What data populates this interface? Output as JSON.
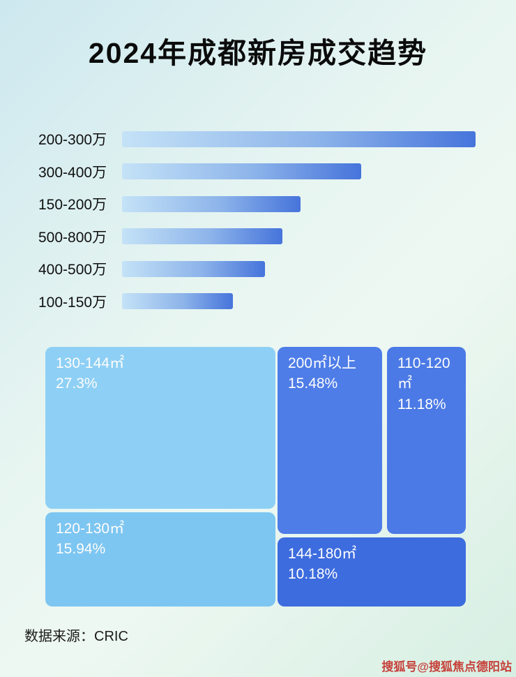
{
  "page": {
    "title": "2024年成都新房成交趋势",
    "source": "数据来源：CRIC",
    "watermark": "搜狐号@搜狐焦点德阳站"
  },
  "colors": {
    "bar_gradient_start": "#c4e2f7",
    "bar_gradient_end": "#4674db",
    "block_text": "#ffffff",
    "watermark_text": "#c6403a"
  },
  "bars": {
    "items": [
      {
        "label": "200-300万",
        "width": "99%"
      },
      {
        "label": "300-400万",
        "width": "67%"
      },
      {
        "label": "150-200万",
        "width": "50%"
      },
      {
        "label": "500-800万",
        "width": "45%"
      },
      {
        "label": "400-500万",
        "width": "40%"
      },
      {
        "label": "100-150万",
        "width": "31%"
      }
    ]
  },
  "treemap": {
    "blocks": [
      {
        "label": "130-144㎡",
        "value": "27.3%",
        "color": "#8ed0f5"
      },
      {
        "label": "200㎡以上",
        "value": "15.48%",
        "color": "#4e7de8"
      },
      {
        "label": "110-120㎡",
        "value": "11.18%",
        "color": "#4b7ae6"
      },
      {
        "label": "120-130㎡",
        "value": "15.94%",
        "color": "#7dc6f2"
      },
      {
        "label": "144-180㎡",
        "value": "10.18%",
        "color": "#3d6cdf"
      }
    ]
  },
  "chart_data": [
    {
      "type": "bar",
      "orientation": "horizontal",
      "title": "2024年成都新房成交趋势",
      "categories": [
        "200-300万",
        "300-400万",
        "150-200万",
        "500-800万",
        "400-500万",
        "100-150万"
      ],
      "values_relative_pct": [
        99,
        67,
        50,
        45,
        40,
        31
      ],
      "value_labels_shown": false,
      "grid": false,
      "legend": "none"
    },
    {
      "type": "treemap",
      "items": [
        {
          "label": "130-144㎡",
          "value_pct": 27.3
        },
        {
          "label": "200㎡以上",
          "value_pct": 15.48
        },
        {
          "label": "110-120㎡",
          "value_pct": 11.18
        },
        {
          "label": "120-130㎡",
          "value_pct": 15.94
        },
        {
          "label": "144-180㎡",
          "value_pct": 10.18
        }
      ]
    }
  ]
}
